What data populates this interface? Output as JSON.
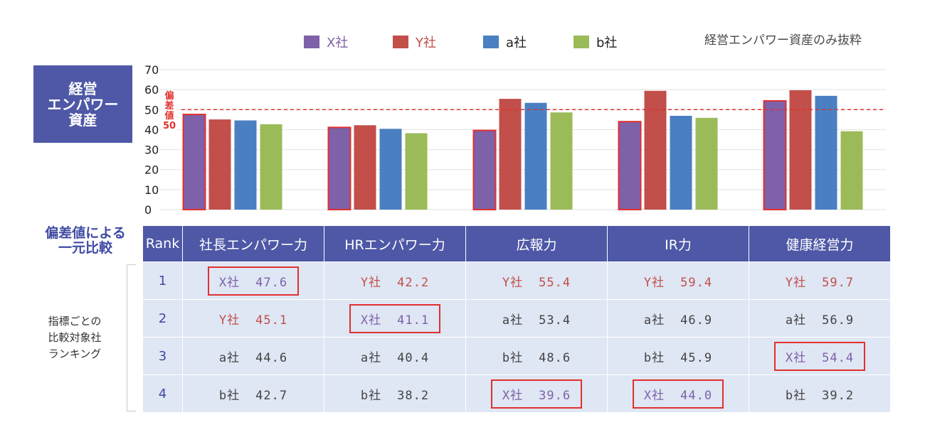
{
  "legend": [
    {
      "label": "X社",
      "color": "#7e61a8"
    },
    {
      "label": "Y社",
      "color": "#c24f4a"
    },
    {
      "label": "a社",
      "color": "#4a7fc1"
    },
    {
      "label": "b社",
      "color": "#9bbb59"
    }
  ],
  "note": "経営エンパワー資産のみ抜粋",
  "title_box": "経営\nエンパワー\n資産",
  "chart_data": {
    "type": "bar",
    "categories": [
      "社長エンパワー力",
      "HRエンパワー力",
      "広報力",
      "IR力",
      "健康経営力"
    ],
    "series": [
      {
        "name": "X社",
        "values": [
          47.6,
          41.1,
          39.6,
          44.0,
          54.4
        ],
        "color": "#7e61a8"
      },
      {
        "name": "Y社",
        "values": [
          45.1,
          42.2,
          55.4,
          59.4,
          59.7
        ],
        "color": "#c24f4a"
      },
      {
        "name": "a社",
        "values": [
          44.6,
          40.4,
          53.4,
          46.9,
          56.9
        ],
        "color": "#4a7fc1"
      },
      {
        "name": "b社",
        "values": [
          42.7,
          38.2,
          48.6,
          45.9,
          39.2
        ],
        "color": "#9bbb59"
      }
    ],
    "ylim": [
      0,
      70
    ],
    "yticks": [
      0,
      10,
      20,
      30,
      40,
      50,
      60,
      70
    ],
    "highlight_series": "X社",
    "reference_line": {
      "value": 50,
      "label": "偏差値50",
      "color": "#e0312e"
    },
    "grid": true
  },
  "table": {
    "compare_title": "偏差値による\n一元比較",
    "side_label": "指標ごとの\n比較対象社\nランキング",
    "headers": [
      "Rank",
      "社長エンパワー力",
      "HRエンパワー力",
      "広報力",
      "IR力",
      "健康経営力"
    ],
    "rows": [
      {
        "rank": "1",
        "cells": [
          {
            "company": "X社",
            "value": "47.6",
            "color": "#7e61a8",
            "highlight": true
          },
          {
            "company": "Y社",
            "value": "42.2",
            "color": "#c24f4a",
            "highlight": false
          },
          {
            "company": "Y社",
            "value": "55.4",
            "color": "#c24f4a",
            "highlight": false
          },
          {
            "company": "Y社",
            "value": "59.4",
            "color": "#c24f4a",
            "highlight": false
          },
          {
            "company": "Y社",
            "value": "59.7",
            "color": "#c24f4a",
            "highlight": false
          }
        ]
      },
      {
        "rank": "2",
        "cells": [
          {
            "company": "Y社",
            "value": "45.1",
            "color": "#c24f4a",
            "highlight": false
          },
          {
            "company": "X社",
            "value": "41.1",
            "color": "#7e61a8",
            "highlight": true
          },
          {
            "company": "a社",
            "value": "53.4",
            "color": "#444444",
            "highlight": false
          },
          {
            "company": "a社",
            "value": "46.9",
            "color": "#444444",
            "highlight": false
          },
          {
            "company": "a社",
            "value": "56.9",
            "color": "#444444",
            "highlight": false
          }
        ]
      },
      {
        "rank": "3",
        "cells": [
          {
            "company": "a社",
            "value": "44.6",
            "color": "#444444",
            "highlight": false
          },
          {
            "company": "a社",
            "value": "40.4",
            "color": "#444444",
            "highlight": false
          },
          {
            "company": "b社",
            "value": "48.6",
            "color": "#444444",
            "highlight": false
          },
          {
            "company": "b社",
            "value": "45.9",
            "color": "#444444",
            "highlight": false
          },
          {
            "company": "X社",
            "value": "54.4",
            "color": "#7e61a8",
            "highlight": true
          }
        ]
      },
      {
        "rank": "4",
        "cells": [
          {
            "company": "b社",
            "value": "42.7",
            "color": "#444444",
            "highlight": false
          },
          {
            "company": "b社",
            "value": "38.2",
            "color": "#444444",
            "highlight": false
          },
          {
            "company": "X社",
            "value": "39.6",
            "color": "#7e61a8",
            "highlight": true
          },
          {
            "company": "X社",
            "value": "44.0",
            "color": "#7e61a8",
            "highlight": true
          },
          {
            "company": "b社",
            "value": "39.2",
            "color": "#444444",
            "highlight": false
          }
        ]
      }
    ]
  }
}
